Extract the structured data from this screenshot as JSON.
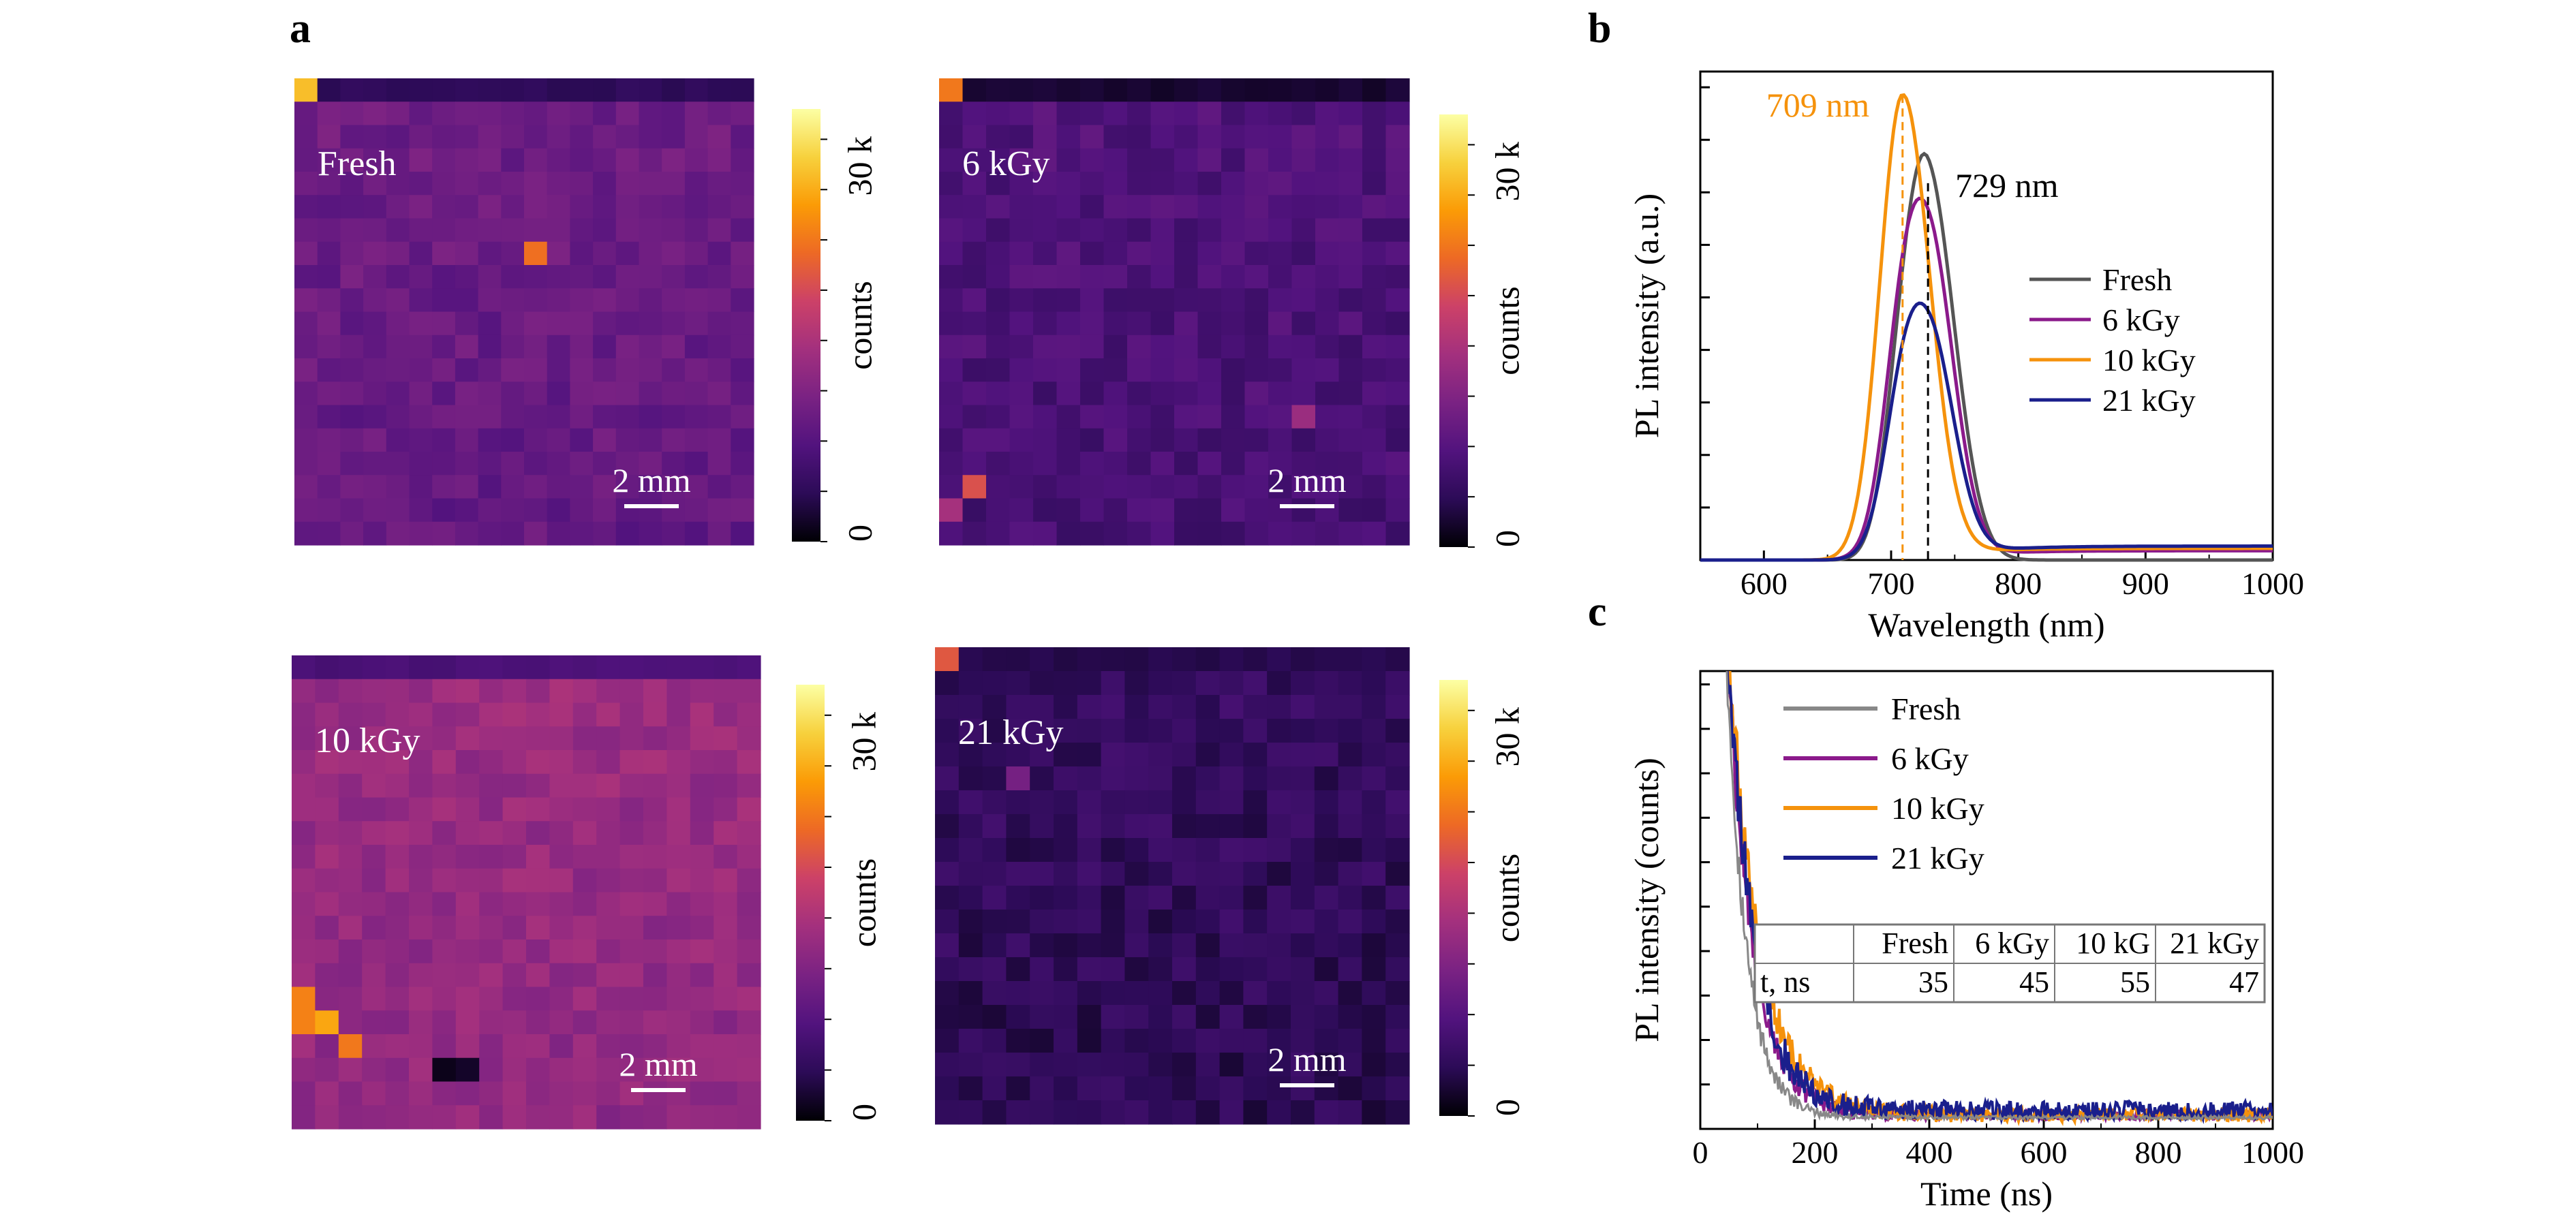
{
  "panels": {
    "a": "a",
    "b": "b",
    "c": "c"
  },
  "maps": [
    {
      "label": "Fresh",
      "scale_bar": "2 mm",
      "mean": 0.3,
      "seed": 11,
      "hot": [
        [
          0,
          0,
          0.85
        ],
        [
          10,
          7,
          0.68
        ]
      ],
      "top_row": 0.12
    },
    {
      "label": "6 kGy",
      "scale_bar": "2 mm",
      "mean": 0.22,
      "seed": 23,
      "hot": [
        [
          0,
          0,
          0.7
        ],
        [
          1,
          17,
          0.6
        ],
        [
          0,
          18,
          0.45
        ],
        [
          15,
          14,
          0.42
        ]
      ],
      "top_row": 0.06
    },
    {
      "label": "10 kGy",
      "scale_bar": "2 mm",
      "mean": 0.42,
      "seed": 37,
      "hot": [
        [
          0,
          14,
          0.72
        ],
        [
          0,
          15,
          0.72
        ],
        [
          1,
          15,
          0.8
        ],
        [
          2,
          16,
          0.7
        ],
        [
          6,
          17,
          0.03
        ],
        [
          7,
          17,
          0.05
        ]
      ],
      "top_row": 0.2
    },
    {
      "label": "21 kGy",
      "scale_bar": "2 mm",
      "mean": 0.14,
      "seed": 53,
      "hot": [
        [
          0,
          0,
          0.62
        ],
        [
          3,
          5,
          0.32
        ]
      ],
      "top_row": 0.1
    }
  ],
  "colorbar": {
    "title": "counts",
    "max_label": "30 k",
    "min_label": "0",
    "colors": [
      "#000004",
      "#2c0b57",
      "#52137e",
      "#7a2283",
      "#a3307e",
      "#cc4168",
      "#ed6925",
      "#fb9b06",
      "#f7d13d",
      "#fcffa4"
    ]
  },
  "chart_data": [
    {
      "type": "line",
      "xlabel": "Wavelength (nm)",
      "ylabel": "PL intensity (a.u.)",
      "xlim": [
        550,
        1000
      ],
      "ylim": [
        0,
        1.05
      ],
      "xticks": [
        600,
        700,
        800,
        900,
        1000
      ],
      "legend_position": "right",
      "series": [
        {
          "name": "Fresh",
          "color": "#555555",
          "peak": 729,
          "amp": 0.81,
          "width_l": 26,
          "width_r": 30,
          "shoulder": 0.5,
          "base": 0.0
        },
        {
          "name": "6 kGy",
          "color": "#8b1a8b",
          "peak": 729,
          "amp": 0.69,
          "width_l": 30,
          "width_r": 28,
          "shoulder": 0.7,
          "base": 0.02
        },
        {
          "name": "10 kGy",
          "color": "#f5920c",
          "peak": 709,
          "amp": 1.0,
          "width_l": 25,
          "width_r": 30,
          "shoulder": 0.0,
          "base": 0.025
        },
        {
          "name": "21 kGy",
          "color": "#1a1f8c",
          "peak": 729,
          "amp": 0.49,
          "width_l": 30,
          "width_r": 28,
          "shoulder": 0.7,
          "base": 0.03
        }
      ],
      "annotations": [
        {
          "text": "709 nm",
          "x": 709,
          "color": "#f5920c"
        },
        {
          "text": "729 nm",
          "x": 729,
          "color": "#000000"
        }
      ]
    },
    {
      "type": "line",
      "xlabel": "Time (ns)",
      "ylabel": "PL intensity (counts)",
      "xlim": [
        0,
        1000
      ],
      "ylim": [
        0,
        1.0
      ],
      "xticks": [
        0,
        200,
        400,
        600,
        800,
        1000
      ],
      "legend_position": "top-left",
      "series": [
        {
          "name": "Fresh",
          "color": "#888888",
          "tau": 35,
          "base": 0.025,
          "noise": 0.004
        },
        {
          "name": "6 kGy",
          "color": "#8b1a8b",
          "tau": 45,
          "base": 0.03,
          "noise": 0.01
        },
        {
          "name": "10 kGy",
          "color": "#f5920c",
          "tau": 55,
          "base": 0.03,
          "noise": 0.015
        },
        {
          "name": "21 kGy",
          "color": "#1a1f8c",
          "tau": 47,
          "base": 0.04,
          "noise": 0.02
        }
      ],
      "table": {
        "header": [
          "",
          "Fresh",
          "6 kGy",
          "10 kG",
          "21 kGy"
        ],
        "rows": [
          [
            "t, ns",
            "35",
            "45",
            "55",
            "47"
          ]
        ]
      }
    }
  ]
}
